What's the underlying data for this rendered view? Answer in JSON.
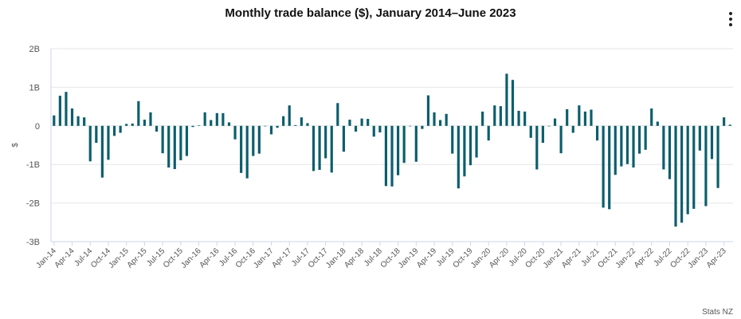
{
  "title": "Monthly trade balance ($), January 2014–June 2023",
  "credit": "Stats NZ",
  "menu_icon": "kebab-menu-icon",
  "colors": {
    "bar": "#0c5e6c",
    "grid": "#e6e6e6",
    "axis": "#ccd6eb",
    "text": "#555555"
  },
  "chart_data": {
    "type": "bar",
    "title": "Monthly trade balance ($), January 2014–June 2023",
    "xlabel": "",
    "ylabel": "$",
    "ylim": [
      -3000000000,
      2000000000
    ],
    "y_ticks": [
      2000000000,
      1000000000,
      0,
      -1000000000,
      -2000000000,
      -3000000000
    ],
    "y_tick_labels": [
      "2B",
      "1B",
      "0",
      "-1B",
      "-2B",
      "-3B"
    ],
    "x_tick_labels": [
      "Jan-14",
      "Apr-14",
      "Jul-14",
      "Oct-14",
      "Jan-15",
      "Apr-15",
      "Jul-15",
      "Oct-15",
      "Jan-16",
      "Apr-16",
      "Jul-16",
      "Oct-16",
      "Jan-17",
      "Apr-17",
      "Jul-17",
      "Oct-17",
      "Jan-18",
      "Apr-18",
      "Jul-18",
      "Oct-18",
      "Jan-19",
      "Apr-19",
      "Jul-19",
      "Oct-19",
      "Jan-20",
      "Apr-20",
      "Jul-20",
      "Oct-20",
      "Jan-21",
      "Apr-21",
      "Jul-21",
      "Oct-21",
      "Jan-22",
      "Apr-22",
      "Jul-22",
      "Oct-22",
      "Jan-23",
      "Apr-23"
    ],
    "series": [
      {
        "name": "Monthly trade balance",
        "values_billions": [
          0.27,
          0.78,
          0.88,
          0.45,
          0.25,
          0.22,
          -0.92,
          -0.44,
          -1.34,
          -0.88,
          -0.26,
          -0.18,
          0.05,
          0.06,
          0.64,
          0.16,
          0.35,
          -0.15,
          -0.71,
          -1.08,
          -1.12,
          -0.89,
          -0.78,
          -0.03,
          0.01,
          0.35,
          0.15,
          0.33,
          0.33,
          0.09,
          -0.35,
          -1.22,
          -1.36,
          -0.78,
          -0.72,
          -0.01,
          -0.22,
          -0.05,
          0.25,
          0.53,
          0.02,
          0.22,
          0.07,
          -1.17,
          -1.14,
          -0.84,
          -1.21,
          0.59,
          -0.67,
          0.16,
          -0.15,
          0.19,
          0.18,
          -0.28,
          -0.17,
          -1.56,
          -1.57,
          -1.28,
          -0.96,
          -0.01,
          -0.93,
          -0.08,
          0.79,
          0.35,
          0.15,
          0.31,
          -0.72,
          -1.62,
          -1.31,
          -1.02,
          -0.82,
          0.37,
          -0.38,
          0.53,
          0.51,
          1.35,
          1.19,
          0.39,
          0.37,
          -0.31,
          -1.13,
          -0.44,
          -0.01,
          0.19,
          -0.71,
          0.43,
          -0.18,
          0.53,
          0.37,
          0.42,
          -0.38,
          -2.12,
          -2.16,
          -1.27,
          -1.05,
          -0.99,
          -1.08,
          -0.72,
          -0.62,
          0.45,
          0.11,
          -1.13,
          -1.38,
          -2.61,
          -2.51,
          -2.29,
          -2.15,
          -0.64,
          -2.08,
          -0.86,
          -1.61,
          0.22,
          0.03
        ]
      }
    ]
  }
}
